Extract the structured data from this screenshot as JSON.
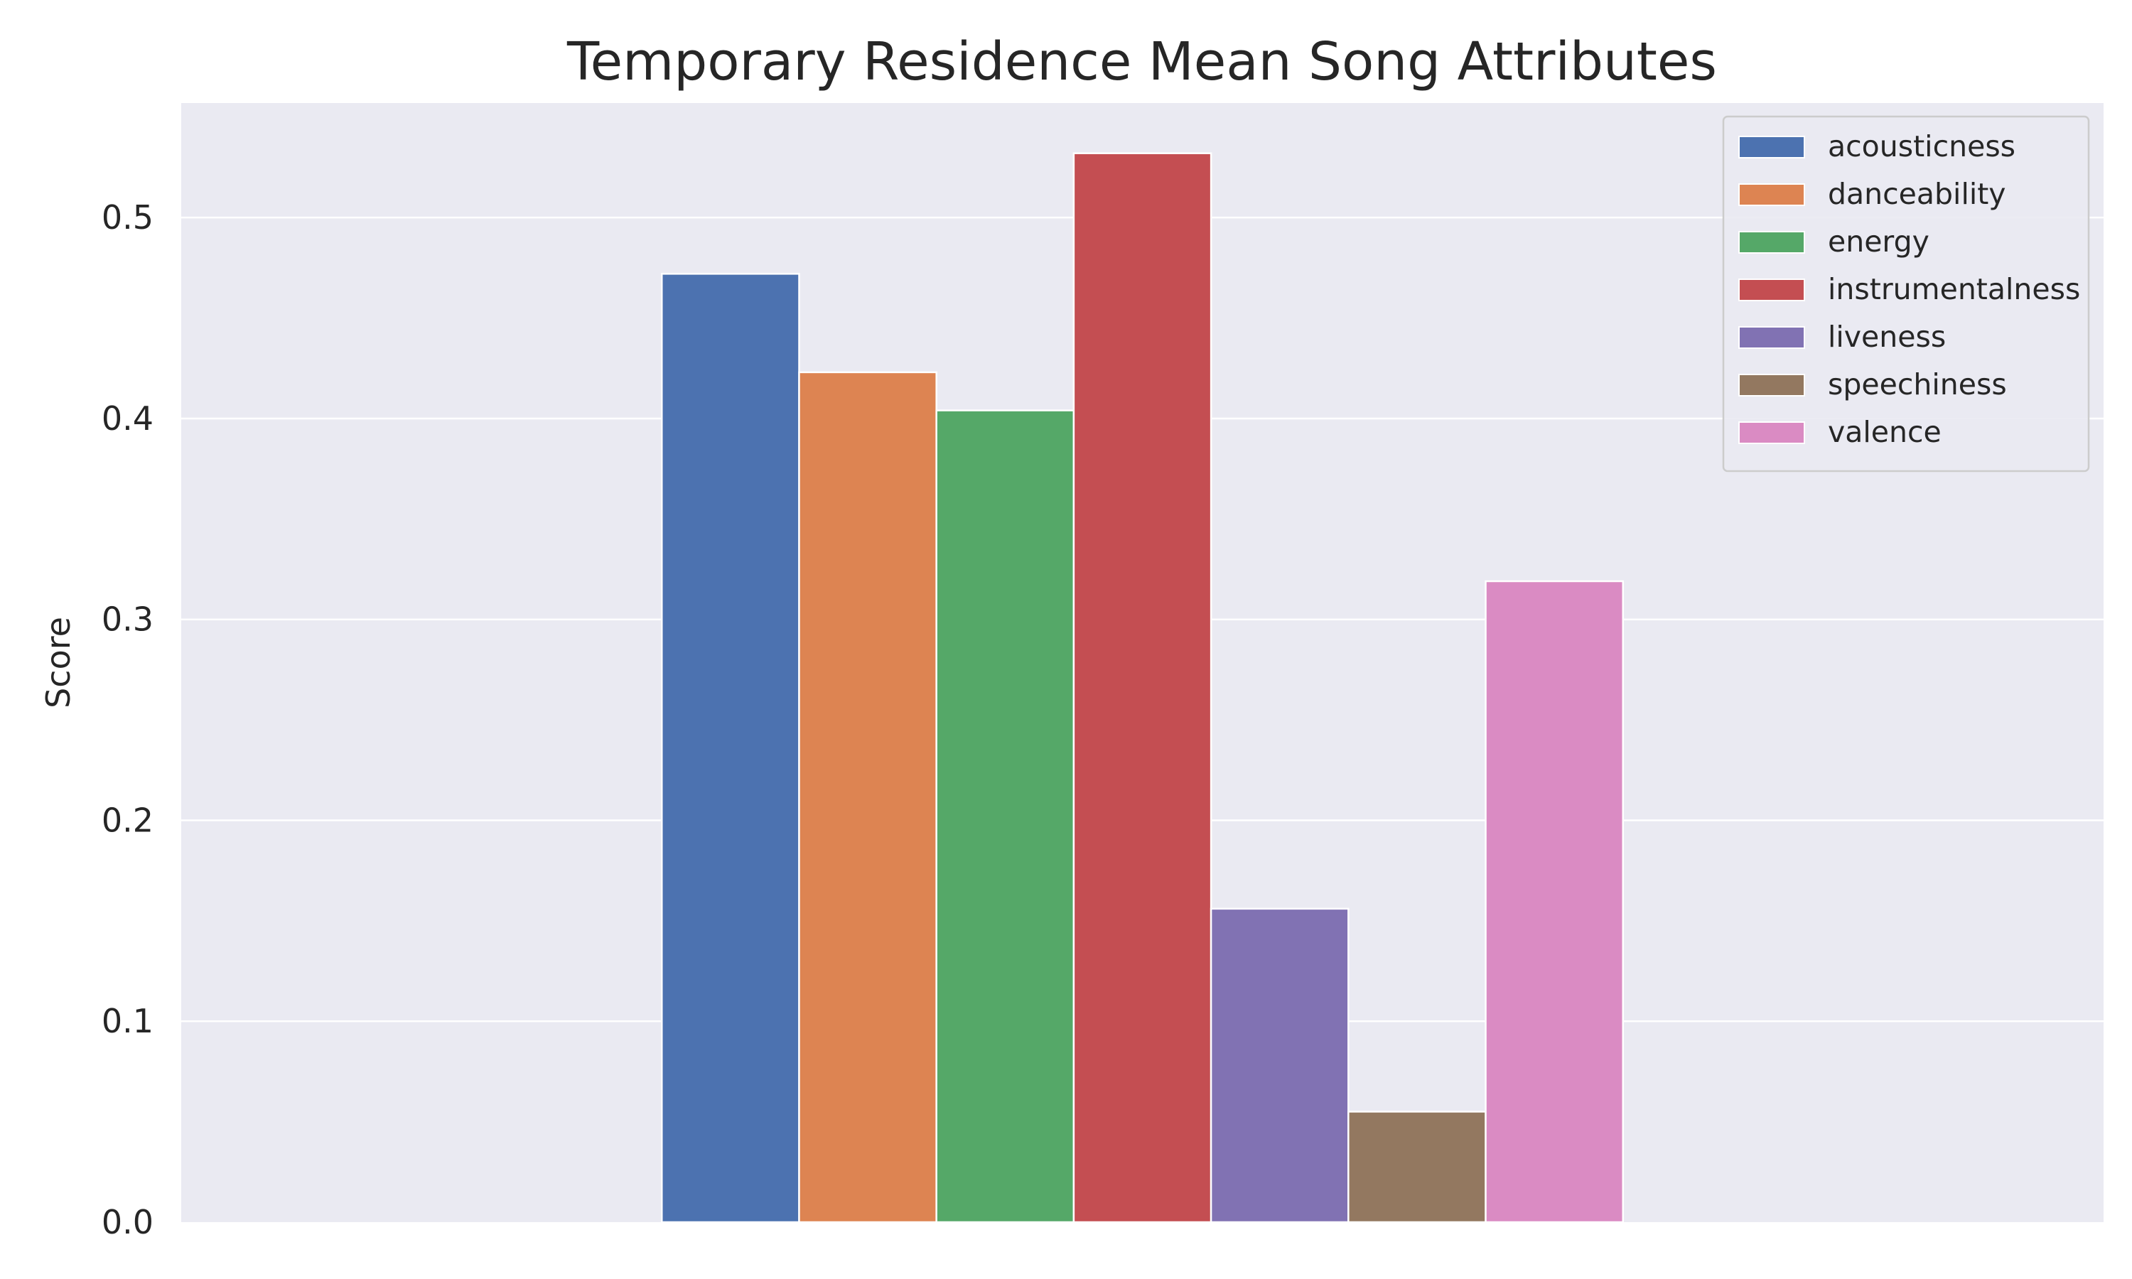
{
  "chart_data": {
    "type": "bar",
    "title": "Temporary Residence Mean Song Attributes",
    "xlabel": "",
    "ylabel": "Score",
    "ylim": [
      0,
      0.557
    ],
    "yticks": [
      "0.0",
      "0.1",
      "0.2",
      "0.3",
      "0.4",
      "0.5"
    ],
    "grid": true,
    "legend_position": "top-right",
    "categories": [
      ""
    ],
    "series": [
      {
        "name": "acousticness",
        "values": [
          0.472
        ],
        "color": "#4c72b0"
      },
      {
        "name": "danceability",
        "values": [
          0.423
        ],
        "color": "#dd8452"
      },
      {
        "name": "energy",
        "values": [
          0.404
        ],
        "color": "#55a868"
      },
      {
        "name": "instrumentalness",
        "values": [
          0.532
        ],
        "color": "#c44e52"
      },
      {
        "name": "liveness",
        "values": [
          0.156
        ],
        "color": "#8172b3"
      },
      {
        "name": "speechiness",
        "values": [
          0.055
        ],
        "color": "#937860"
      },
      {
        "name": "valence",
        "values": [
          0.319
        ],
        "color": "#da8bc3"
      }
    ]
  },
  "colors": {
    "plot_background": "#eaeaf2",
    "grid": "#ffffff",
    "text": "#262626"
  }
}
